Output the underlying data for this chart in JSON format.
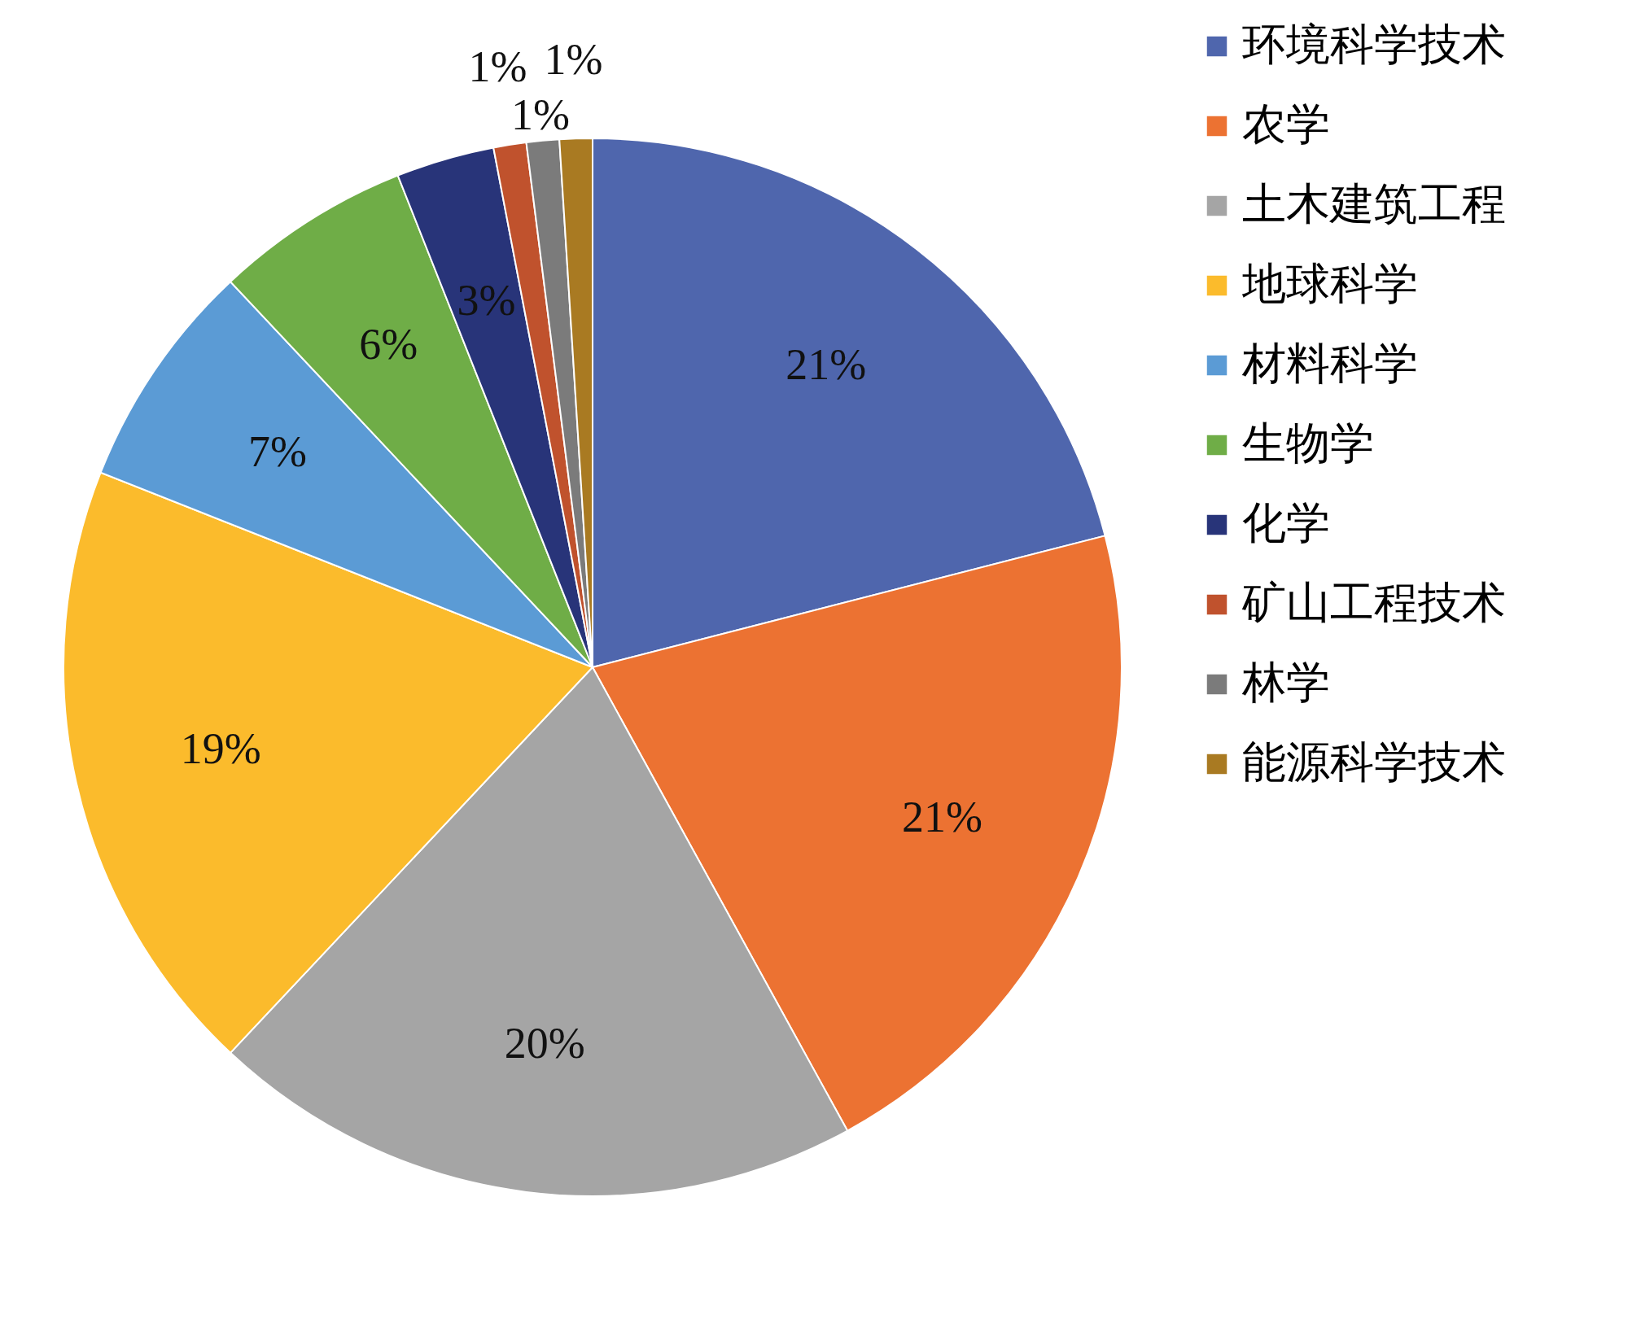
{
  "chart_data": {
    "type": "pie",
    "categories": [
      "环境科学技术",
      "农学",
      "土木建筑工程",
      "地球科学",
      "材料科学",
      "生物学",
      "化学",
      "矿山工程技术",
      "林学",
      "能源科学技术"
    ],
    "values": [
      21,
      21,
      20,
      19,
      7,
      6,
      3,
      1,
      1,
      1
    ],
    "colors": [
      "#4f66ad",
      "#ec7232",
      "#a5a5a5",
      "#fbbb2c",
      "#5b9bd5",
      "#6fad47",
      "#283479",
      "#c0522d",
      "#7b7b7b",
      "#a97a22"
    ],
    "value_labels": [
      "21%",
      "21%",
      "20%",
      "19%",
      "7%",
      "6%",
      "3%",
      "1%",
      "1%",
      "1%"
    ],
    "legend": "right"
  }
}
